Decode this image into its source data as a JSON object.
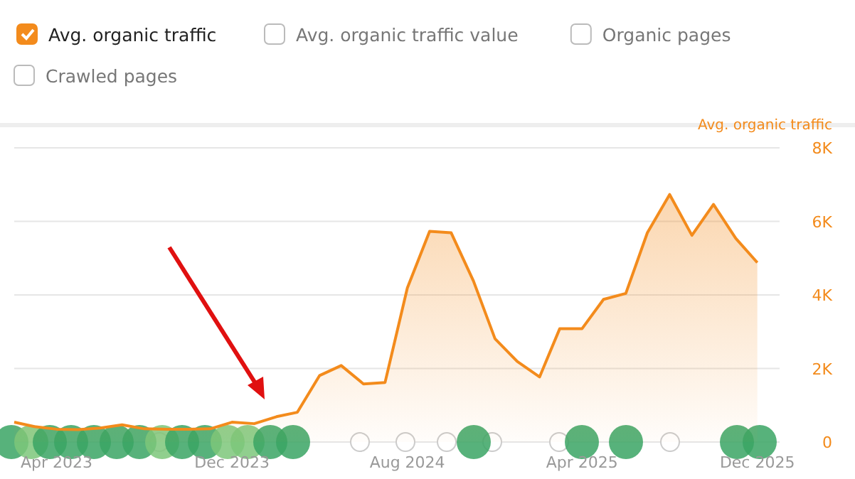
{
  "chart_data": {
    "type": "area",
    "ylabel": "Avg. organic traffic",
    "x": [
      "2023-02",
      "2023-03",
      "2023-04",
      "2023-05",
      "2023-06",
      "2023-07",
      "2023-08",
      "2023-09",
      "2023-10",
      "2023-11",
      "2023-12",
      "2024-01",
      "2024-02",
      "2024-03",
      "2024-04",
      "2024-05",
      "2024-06",
      "2024-07",
      "2024-08",
      "2024-09",
      "2024-10",
      "2024-11",
      "2024-12",
      "2025-01",
      "2025-02",
      "2025-03",
      "2025-04",
      "2025-05",
      "2025-06",
      "2025-07",
      "2025-08",
      "2025-09",
      "2025-10",
      "2025-11",
      "2025-12"
    ],
    "series": [
      {
        "name": "Avg. organic traffic",
        "color": "#f38b1c",
        "values": [
          540,
          420,
          350,
          340,
          380,
          470,
          360,
          350,
          350,
          360,
          540,
          500,
          690,
          810,
          1810,
          2080,
          1580,
          1620,
          4190,
          5730,
          5690,
          4380,
          2810,
          2190,
          1770,
          3080,
          3080,
          3880,
          4040,
          5690,
          6730,
          5620,
          6460,
          5540,
          4880
        ]
      }
    ],
    "xlim": [
      "2023-02",
      "2026-01"
    ],
    "xticks": [
      {
        "value": "2023-04",
        "label": "Apr 2023"
      },
      {
        "value": "2023-12",
        "label": "Dec 2023"
      },
      {
        "value": "2024-08",
        "label": "Aug 2024"
      },
      {
        "value": "2025-04",
        "label": "Apr 2025"
      },
      {
        "value": "2025-12",
        "label": "Dec 2025"
      }
    ],
    "ylim": [
      0,
      8000
    ],
    "yticks": [
      0,
      {
        "value": 2000,
        "label": "2K"
      },
      {
        "value": 4000,
        "label": "4K"
      },
      {
        "value": 6000,
        "label": "6K"
      },
      {
        "value": 8000,
        "label": "8K"
      }
    ],
    "grid": "y",
    "legend": "top left",
    "annotations": [
      "Avg. organic traffic value",
      "Organic pages",
      "Crawled pages"
    ]
  }
}
